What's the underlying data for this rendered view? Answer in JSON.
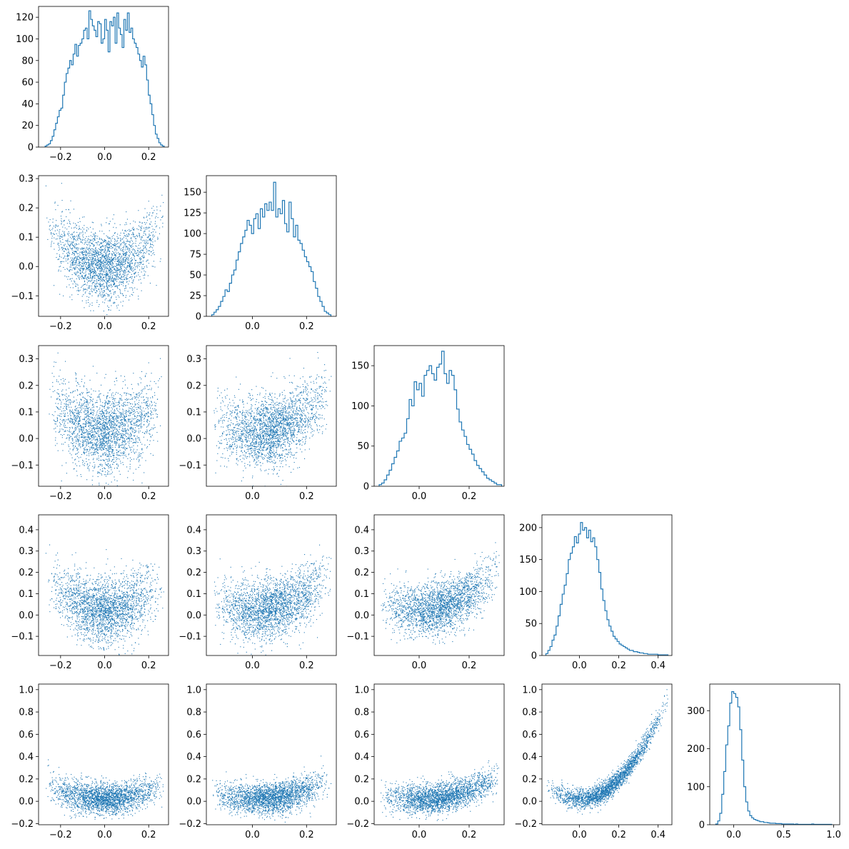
{
  "figure": {
    "rows": 5,
    "cols": 5,
    "layout": "lower-triangle corner plot",
    "color": "#1f77b4"
  },
  "chart_data": [
    {
      "type": "histogram",
      "row": 0,
      "col": 0,
      "xlim": [
        -0.3,
        0.29
      ],
      "ylim": [
        0,
        130
      ],
      "xticks": [
        -0.2,
        0.0,
        0.2
      ],
      "xtick_labels": [
        "−0.2",
        "0.0",
        "0.2"
      ],
      "yticks": [
        0,
        20,
        40,
        60,
        80,
        100,
        120
      ],
      "ytick_labels": [
        "0",
        "20",
        "40",
        "60",
        "80",
        "100",
        "120"
      ],
      "bins": {
        "start": -0.27,
        "end": 0.27
      },
      "counts": [
        1,
        2,
        3,
        6,
        10,
        16,
        22,
        28,
        34,
        36,
        48,
        60,
        68,
        73,
        80,
        76,
        86,
        95,
        84,
        94,
        96,
        100,
        108,
        110,
        100,
        126,
        118,
        112,
        108,
        102,
        116,
        114,
        96,
        100,
        118,
        108,
        88,
        116,
        112,
        120,
        96,
        124,
        110,
        104,
        92,
        118,
        108,
        124,
        106,
        110,
        100,
        96,
        92,
        86,
        80,
        74,
        84,
        76,
        62,
        48,
        40,
        30,
        20,
        12,
        8,
        4,
        2,
        1
      ]
    },
    {
      "type": "scatter",
      "row": 1,
      "col": 0,
      "xlim": [
        -0.3,
        0.29
      ],
      "ylim": [
        -0.17,
        0.31
      ],
      "xticks": [
        -0.2,
        0.0,
        0.2
      ],
      "xtick_labels": [
        "−0.2",
        "0.0",
        "0.2"
      ],
      "yticks": [
        -0.1,
        0.0,
        0.1,
        0.2,
        0.3
      ],
      "ytick_labels": [
        "−0.1",
        "0.0",
        "0.1",
        "0.2",
        "0.3"
      ],
      "n_points": 2500,
      "shape": "parabolic band",
      "relation": {
        "y_center": "2*x^2 + 0.002",
        "y_spread": 0.06,
        "x_range": [
          -0.27,
          0.27
        ]
      }
    },
    {
      "type": "histogram",
      "row": 1,
      "col": 1,
      "xlim": [
        -0.17,
        0.31
      ],
      "ylim": [
        0,
        170
      ],
      "xticks": [
        0.0,
        0.2
      ],
      "xtick_labels": [
        "0.0",
        "0.2"
      ],
      "yticks": [
        0,
        25,
        50,
        75,
        100,
        125,
        150
      ],
      "ytick_labels": [
        "0",
        "25",
        "50",
        "75",
        "100",
        "125",
        "150"
      ],
      "bins": {
        "start": -0.15,
        "end": 0.29
      },
      "counts": [
        2,
        5,
        8,
        12,
        18,
        24,
        32,
        30,
        40,
        50,
        56,
        68,
        78,
        88,
        96,
        104,
        116,
        110,
        100,
        118,
        124,
        106,
        130,
        120,
        136,
        128,
        138,
        128,
        162,
        120,
        130,
        124,
        140,
        112,
        102,
        138,
        118,
        96,
        110,
        92,
        88,
        80,
        72,
        66,
        60,
        54,
        42,
        34,
        24,
        18,
        12,
        6,
        4,
        2
      ]
    },
    {
      "type": "scatter",
      "row": 2,
      "col": 0,
      "xlim": [
        -0.3,
        0.29
      ],
      "ylim": [
        -0.18,
        0.35
      ],
      "xticks": [
        -0.2,
        0.0,
        0.2
      ],
      "xtick_labels": [
        "−0.2",
        "0.0",
        "0.2"
      ],
      "yticks": [
        -0.1,
        0.0,
        0.1,
        0.2,
        0.3
      ],
      "ytick_labels": [
        "−0.1",
        "0.0",
        "0.1",
        "0.2",
        "0.3"
      ],
      "n_points": 2500,
      "shape": "parabolic band",
      "relation": {
        "y_center": "2*x^2 + 0.02",
        "y_spread": 0.075,
        "x_range": [
          -0.27,
          0.27
        ]
      }
    },
    {
      "type": "scatter",
      "row": 2,
      "col": 1,
      "xlim": [
        -0.17,
        0.31
      ],
      "ylim": [
        -0.18,
        0.35
      ],
      "xticks": [
        0.0,
        0.2
      ],
      "xtick_labels": [
        "0.0",
        "0.2"
      ],
      "yticks": [
        -0.1,
        0.0,
        0.1,
        0.2,
        0.3
      ],
      "ytick_labels": [
        "−0.1",
        "0.0",
        "0.1",
        "0.2",
        "0.3"
      ],
      "n_points": 2500,
      "shape": "curved band",
      "relation": {
        "y_center": "2*x^2 + 0.02",
        "y_spread": 0.065,
        "x_range": [
          -0.15,
          0.29
        ]
      }
    },
    {
      "type": "histogram",
      "row": 2,
      "col": 2,
      "xlim": [
        -0.18,
        0.34
      ],
      "ylim": [
        0,
        175
      ],
      "xticks": [
        0.0,
        0.2
      ],
      "xtick_labels": [
        "0.0",
        "0.2"
      ],
      "yticks": [
        0,
        50,
        100,
        150
      ],
      "ytick_labels": [
        "0",
        "50",
        "100",
        "150"
      ],
      "bins": {
        "start": -0.16,
        "end": 0.33
      },
      "counts": [
        2,
        4,
        8,
        14,
        20,
        28,
        36,
        44,
        56,
        60,
        66,
        84,
        108,
        100,
        130,
        120,
        128,
        112,
        138,
        144,
        150,
        140,
        132,
        148,
        152,
        168,
        140,
        128,
        144,
        138,
        120,
        96,
        80,
        70,
        62,
        52,
        46,
        40,
        32,
        26,
        22,
        18,
        14,
        10,
        8,
        6,
        4,
        2,
        2
      ]
    },
    {
      "type": "scatter",
      "row": 3,
      "col": 0,
      "xlim": [
        -0.3,
        0.29
      ],
      "ylim": [
        -0.19,
        0.47
      ],
      "xticks": [
        -0.2,
        0.0,
        0.2
      ],
      "xtick_labels": [
        "−0.2",
        "0.0",
        "0.2"
      ],
      "yticks": [
        -0.1,
        0.0,
        0.1,
        0.2,
        0.3,
        0.4
      ],
      "ytick_labels": [
        "−0.1",
        "0.0",
        "0.1",
        "0.2",
        "0.3",
        "0.4"
      ],
      "n_points": 2500,
      "shape": "U-shaped band",
      "relation": {
        "y_center": "2*x^2 + 0.02",
        "y_spread": 0.075,
        "x_range": [
          -0.27,
          0.27
        ]
      }
    },
    {
      "type": "scatter",
      "row": 3,
      "col": 1,
      "xlim": [
        -0.17,
        0.31
      ],
      "ylim": [
        -0.19,
        0.47
      ],
      "xticks": [
        0.0,
        0.2
      ],
      "xtick_labels": [
        "0.0",
        "0.2"
      ],
      "yticks": [
        -0.1,
        0.0,
        0.1,
        0.2,
        0.3,
        0.4
      ],
      "ytick_labels": [
        "−0.1",
        "0.0",
        "0.1",
        "0.2",
        "0.3",
        "0.4"
      ],
      "n_points": 2500,
      "shape": "curved band",
      "relation": {
        "y_center": "2*x^2 + 0.02",
        "y_spread": 0.07,
        "x_range": [
          -0.15,
          0.29
        ]
      }
    },
    {
      "type": "scatter",
      "row": 3,
      "col": 2,
      "xlim": [
        -0.18,
        0.34
      ],
      "ylim": [
        -0.19,
        0.47
      ],
      "xticks": [
        0.0,
        0.2
      ],
      "xtick_labels": [
        "0.0",
        "0.2"
      ],
      "yticks": [
        -0.1,
        0.0,
        0.1,
        0.2,
        0.3,
        0.4
      ],
      "ytick_labels": [
        "−0.1",
        "0.0",
        "0.1",
        "0.2",
        "0.3",
        "0.4"
      ],
      "n_points": 2500,
      "shape": "curved band",
      "relation": {
        "y_center": "2*x^2 + 0.02",
        "y_spread": 0.06,
        "x_range": [
          -0.16,
          0.33
        ]
      }
    },
    {
      "type": "histogram",
      "row": 3,
      "col": 3,
      "xlim": [
        -0.19,
        0.47
      ],
      "ylim": [
        0,
        220
      ],
      "xticks": [
        0.0,
        0.2,
        0.4
      ],
      "xtick_labels": [
        "0.0",
        "0.2",
        "0.4"
      ],
      "yticks": [
        0,
        50,
        100,
        150,
        200
      ],
      "ytick_labels": [
        "0",
        "50",
        "100",
        "150",
        "200"
      ],
      "bins": {
        "start": -0.17,
        "end": 0.45
      },
      "counts": [
        3,
        8,
        14,
        24,
        32,
        46,
        62,
        80,
        96,
        110,
        128,
        150,
        160,
        170,
        186,
        176,
        190,
        208,
        196,
        200,
        184,
        196,
        178,
        184,
        170,
        150,
        130,
        104,
        86,
        70,
        56,
        46,
        38,
        30,
        26,
        22,
        18,
        16,
        14,
        12,
        10,
        8,
        8,
        6,
        6,
        5,
        4,
        4,
        3,
        3,
        2,
        2,
        2,
        2,
        2,
        1,
        1,
        1,
        1,
        1
      ]
    },
    {
      "type": "scatter",
      "row": 4,
      "col": 0,
      "xlim": [
        -0.3,
        0.29
      ],
      "ylim": [
        -0.21,
        1.05
      ],
      "xticks": [
        -0.2,
        0.0,
        0.2
      ],
      "xtick_labels": [
        "−0.2",
        "0.0",
        "0.2"
      ],
      "yticks": [
        -0.2,
        0.0,
        0.2,
        0.4,
        0.6,
        0.8,
        1.0
      ],
      "ytick_labels": [
        "−0.2",
        "0.0",
        "0.2",
        "0.4",
        "0.6",
        "0.8",
        "1.0"
      ],
      "n_points": 2500,
      "shape": "flat band with sparse tails",
      "relation": {
        "y_center": "2*x^2 + 0.02",
        "y_spread": 0.07,
        "x_range": [
          -0.27,
          0.27
        ]
      }
    },
    {
      "type": "scatter",
      "row": 4,
      "col": 1,
      "xlim": [
        -0.17,
        0.31
      ],
      "ylim": [
        -0.21,
        1.05
      ],
      "xticks": [
        0.0,
        0.2
      ],
      "xtick_labels": [
        "0.0",
        "0.2"
      ],
      "yticks": [
        -0.2,
        0.0,
        0.2,
        0.4,
        0.6,
        0.8,
        1.0
      ],
      "ytick_labels": [
        "−0.2",
        "0.0",
        "0.2",
        "0.4",
        "0.6",
        "0.8",
        "1.0"
      ],
      "n_points": 2500,
      "shape": "flat band rising at right",
      "relation": {
        "y_center": "2*x^2 + 0.02",
        "y_spread": 0.07,
        "x_range": [
          -0.15,
          0.29
        ]
      }
    },
    {
      "type": "scatter",
      "row": 4,
      "col": 2,
      "xlim": [
        -0.18,
        0.34
      ],
      "ylim": [
        -0.21,
        1.05
      ],
      "xticks": [
        0.0,
        0.2
      ],
      "xtick_labels": [
        "0.0",
        "0.2"
      ],
      "yticks": [
        -0.2,
        0.0,
        0.2,
        0.4,
        0.6,
        0.8,
        1.0
      ],
      "ytick_labels": [
        "−0.2",
        "0.0",
        "0.2",
        "0.4",
        "0.6",
        "0.8",
        "1.0"
      ],
      "n_points": 2500,
      "shape": "curved band",
      "relation": {
        "y_center": "2*x^2 + 0.02",
        "y_spread": 0.065,
        "x_range": [
          -0.16,
          0.33
        ]
      }
    },
    {
      "type": "scatter",
      "row": 4,
      "col": 3,
      "xlim": [
        -0.19,
        0.47
      ],
      "ylim": [
        -0.21,
        1.05
      ],
      "xticks": [
        0.0,
        0.2,
        0.4
      ],
      "xtick_labels": [
        "0.0",
        "0.2",
        "0.4"
      ],
      "yticks": [
        -0.2,
        0.0,
        0.2,
        0.4,
        0.6,
        0.8,
        1.0
      ],
      "ytick_labels": [
        "−0.2",
        "0.0",
        "0.2",
        "0.4",
        "0.6",
        "0.8",
        "1.0"
      ],
      "n_points": 2500,
      "shape": "tight parabola",
      "relation": {
        "y_center": "4.5*x^2 + 0.02",
        "y_spread": 0.045,
        "x_range": [
          -0.17,
          0.45
        ]
      }
    },
    {
      "type": "histogram",
      "row": 4,
      "col": 4,
      "xlim": [
        -0.24,
        1.06
      ],
      "ylim": [
        0,
        370
      ],
      "xticks": [
        0.0,
        0.5,
        1.0
      ],
      "xtick_labels": [
        "0.0",
        "0.5",
        "1.0"
      ],
      "yticks": [
        0,
        100,
        200,
        300
      ],
      "ytick_labels": [
        "0",
        "100",
        "200",
        "300"
      ],
      "bins": {
        "start": -0.18,
        "end": 0.98
      },
      "counts": [
        2,
        10,
        30,
        80,
        140,
        210,
        260,
        320,
        350,
        345,
        335,
        310,
        250,
        170,
        100,
        60,
        36,
        24,
        18,
        14,
        12,
        10,
        8,
        8,
        6,
        6,
        5,
        4,
        4,
        4,
        3,
        3,
        3,
        2,
        2,
        2,
        2,
        2,
        2,
        1,
        2,
        1,
        1,
        1,
        1,
        1,
        1,
        1,
        2,
        1,
        1,
        1,
        1,
        1,
        1,
        1,
        1,
        1
      ]
    }
  ]
}
